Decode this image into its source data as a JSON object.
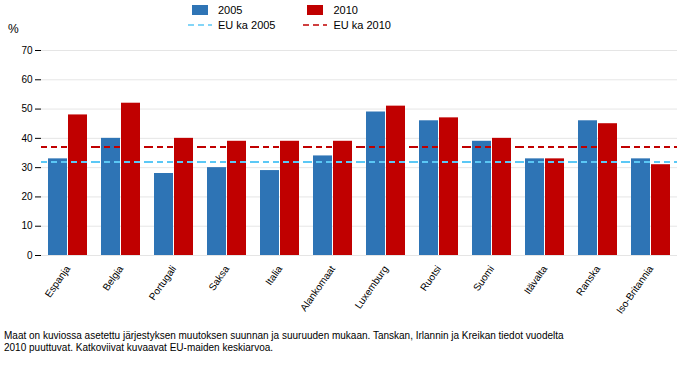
{
  "chart_data": {
    "type": "bar",
    "categories": [
      "Espanja",
      "Belgia",
      "Portugali",
      "Saksa",
      "Italia",
      "Alankomaat",
      "Luxemburg",
      "Ruotsi",
      "Suomi",
      "Itävalta",
      "Ranska",
      "Iso-Britannia"
    ],
    "series": [
      {
        "name": "2005",
        "type": "bar",
        "color": "#2E74B5",
        "values": [
          33,
          40,
          28,
          30,
          29,
          34,
          49,
          46,
          39,
          33,
          46,
          33
        ]
      },
      {
        "name": "2010",
        "type": "bar",
        "color": "#C00000",
        "values": [
          48,
          52,
          40,
          39,
          39,
          39,
          51,
          47,
          40,
          33,
          45,
          31
        ]
      },
      {
        "name": "EU ka 2005",
        "type": "line",
        "line_style": "dashed",
        "color": "#5BC8F5",
        "values": [
          32,
          32,
          32,
          32,
          32,
          32,
          32,
          32,
          32,
          32,
          32,
          32
        ]
      },
      {
        "name": "EU ka 2010",
        "type": "line",
        "line_style": "dashed",
        "color": "#C00000",
        "values": [
          37,
          37,
          37,
          37,
          37,
          37,
          37,
          37,
          37,
          37,
          37,
          37
        ]
      }
    ],
    "ylabel": "%",
    "ylim": [
      0,
      70
    ],
    "yticks": [
      0,
      10,
      20,
      30,
      40,
      50,
      60,
      70
    ],
    "grid": true,
    "legend": "top",
    "footnote": "Maat on kuviossa asetettu järjestyksen muutoksen suunnan ja suuruuden mukaan. Tanskan, Irlannin ja Kreikan tiedot vuodelta\n2010 puuttuvat. Katkoviivat kuvaavat EU-maiden keskiarvoa."
  }
}
